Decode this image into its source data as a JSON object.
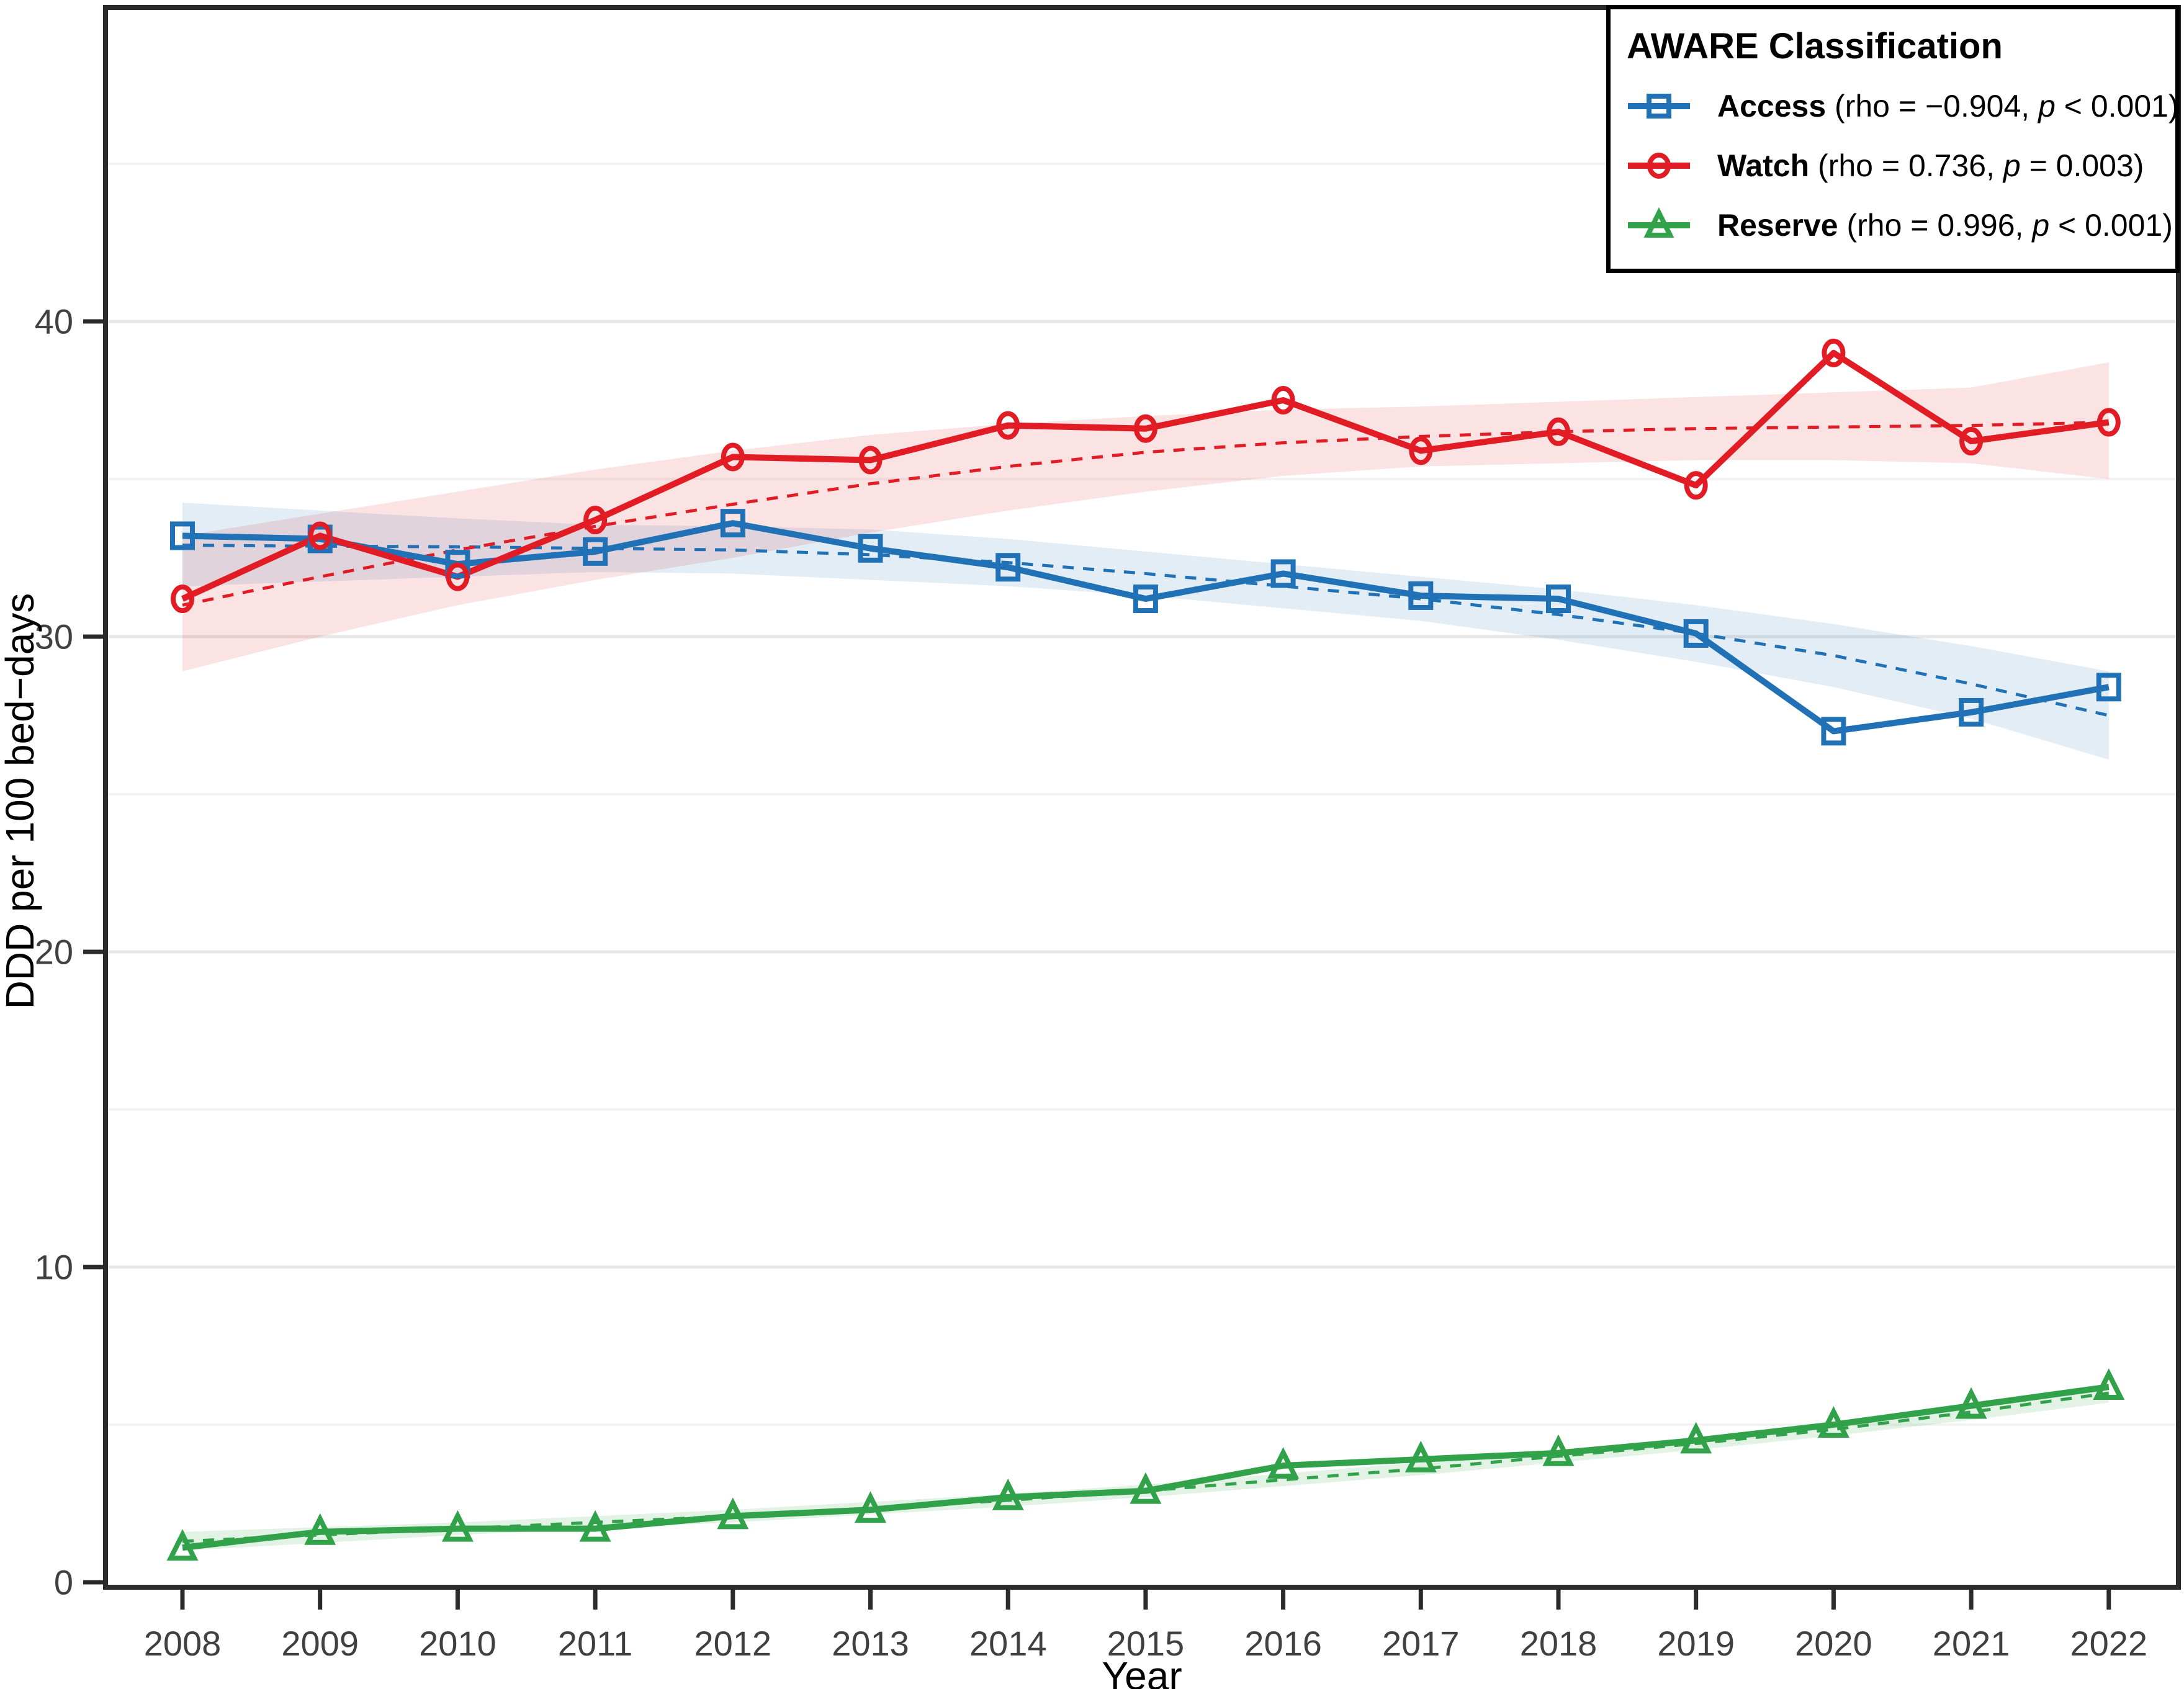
{
  "chart_data": {
    "type": "line",
    "title": "",
    "xlabel": "Year",
    "ylabel": "DDD per 100 bed−days",
    "x": [
      2008,
      2009,
      2010,
      2011,
      2012,
      2013,
      2014,
      2015,
      2016,
      2017,
      2018,
      2019,
      2020,
      2021,
      2022
    ],
    "ylim": [
      0,
      48.6
    ],
    "yticks": [
      0,
      10,
      20,
      30,
      40
    ],
    "minor_gridlines": [
      5,
      15,
      25,
      35,
      45
    ],
    "grid": "horizontal-only",
    "legend_position": "top-right-inside",
    "legend_title": "AWARE Classification",
    "axis_text_color": "#404040",
    "panel_border_color": "#2b2b2b",
    "series": [
      {
        "name": "Access",
        "marker": "square",
        "color": "#2071b5",
        "band_color": "rgba(32,113,181,0.13)",
        "values": [
          33.2,
          33.1,
          32.3,
          32.7,
          33.6,
          32.8,
          32.2,
          31.2,
          32.0,
          31.3,
          31.2,
          30.1,
          27.0,
          27.6,
          28.4
        ],
        "trend": [
          32.9,
          32.87,
          32.85,
          32.8,
          32.75,
          32.6,
          32.35,
          32.0,
          31.6,
          31.2,
          30.7,
          30.1,
          29.4,
          28.5,
          27.5
        ],
        "band_upper": [
          34.25,
          34.0,
          33.75,
          33.55,
          33.5,
          33.4,
          33.1,
          32.7,
          32.3,
          31.9,
          31.5,
          31.0,
          30.4,
          29.7,
          28.9
        ],
        "band_lower": [
          31.6,
          31.75,
          31.9,
          32.05,
          32.0,
          31.8,
          31.6,
          31.3,
          30.9,
          30.5,
          29.9,
          29.2,
          28.4,
          27.4,
          26.1
        ],
        "legend_name": "Access",
        "legend_stats_prefix": " (rho = −0.904, ",
        "legend_p": "p",
        "legend_stats_suffix": " < 0.001)"
      },
      {
        "name": "Watch",
        "marker": "circle",
        "color": "#e21c24",
        "band_color": "rgba(226,28,36,0.12)",
        "values": [
          31.2,
          33.2,
          31.9,
          33.7,
          35.7,
          35.6,
          36.7,
          36.6,
          37.5,
          35.9,
          36.5,
          34.8,
          39.0,
          36.2,
          36.8
        ],
        "trend": [
          31.0,
          31.9,
          32.75,
          33.5,
          34.2,
          34.85,
          35.4,
          35.85,
          36.15,
          36.35,
          36.5,
          36.6,
          36.65,
          36.7,
          36.8
        ],
        "band_upper": [
          33.2,
          33.9,
          34.6,
          35.3,
          35.9,
          36.4,
          36.75,
          37.0,
          37.2,
          37.3,
          37.45,
          37.6,
          37.75,
          37.9,
          38.7
        ],
        "band_lower": [
          28.9,
          30.0,
          31.0,
          31.8,
          32.5,
          33.3,
          34.0,
          34.6,
          35.1,
          35.4,
          35.5,
          35.6,
          35.6,
          35.5,
          35.0
        ],
        "legend_name": "Watch",
        "legend_stats_prefix": " (rho = 0.736, ",
        "legend_p": "p",
        "legend_stats_suffix": " = 0.003)"
      },
      {
        "name": "Reserve",
        "marker": "triangle",
        "color": "#31a24a",
        "band_color": "rgba(49,162,74,0.14)",
        "values": [
          1.1,
          1.6,
          1.7,
          1.7,
          2.1,
          2.3,
          2.7,
          2.9,
          3.7,
          3.9,
          4.1,
          4.5,
          5.0,
          5.6,
          6.2
        ],
        "trend": [
          1.3,
          1.5,
          1.7,
          1.9,
          2.1,
          2.35,
          2.6,
          2.9,
          3.25,
          3.6,
          4.0,
          4.4,
          4.85,
          5.4,
          6.0
        ],
        "band_upper": [
          1.6,
          1.75,
          1.9,
          2.1,
          2.3,
          2.55,
          2.8,
          3.1,
          3.45,
          3.8,
          4.2,
          4.6,
          5.05,
          5.65,
          6.3
        ],
        "band_lower": [
          1.0,
          1.25,
          1.5,
          1.7,
          1.9,
          2.15,
          2.4,
          2.7,
          3.05,
          3.4,
          3.8,
          4.2,
          4.65,
          5.15,
          5.7
        ],
        "legend_name": "Reserve",
        "legend_stats_prefix": " (rho = 0.996, ",
        "legend_p": "p",
        "legend_stats_suffix": " < 0.001)"
      }
    ]
  }
}
